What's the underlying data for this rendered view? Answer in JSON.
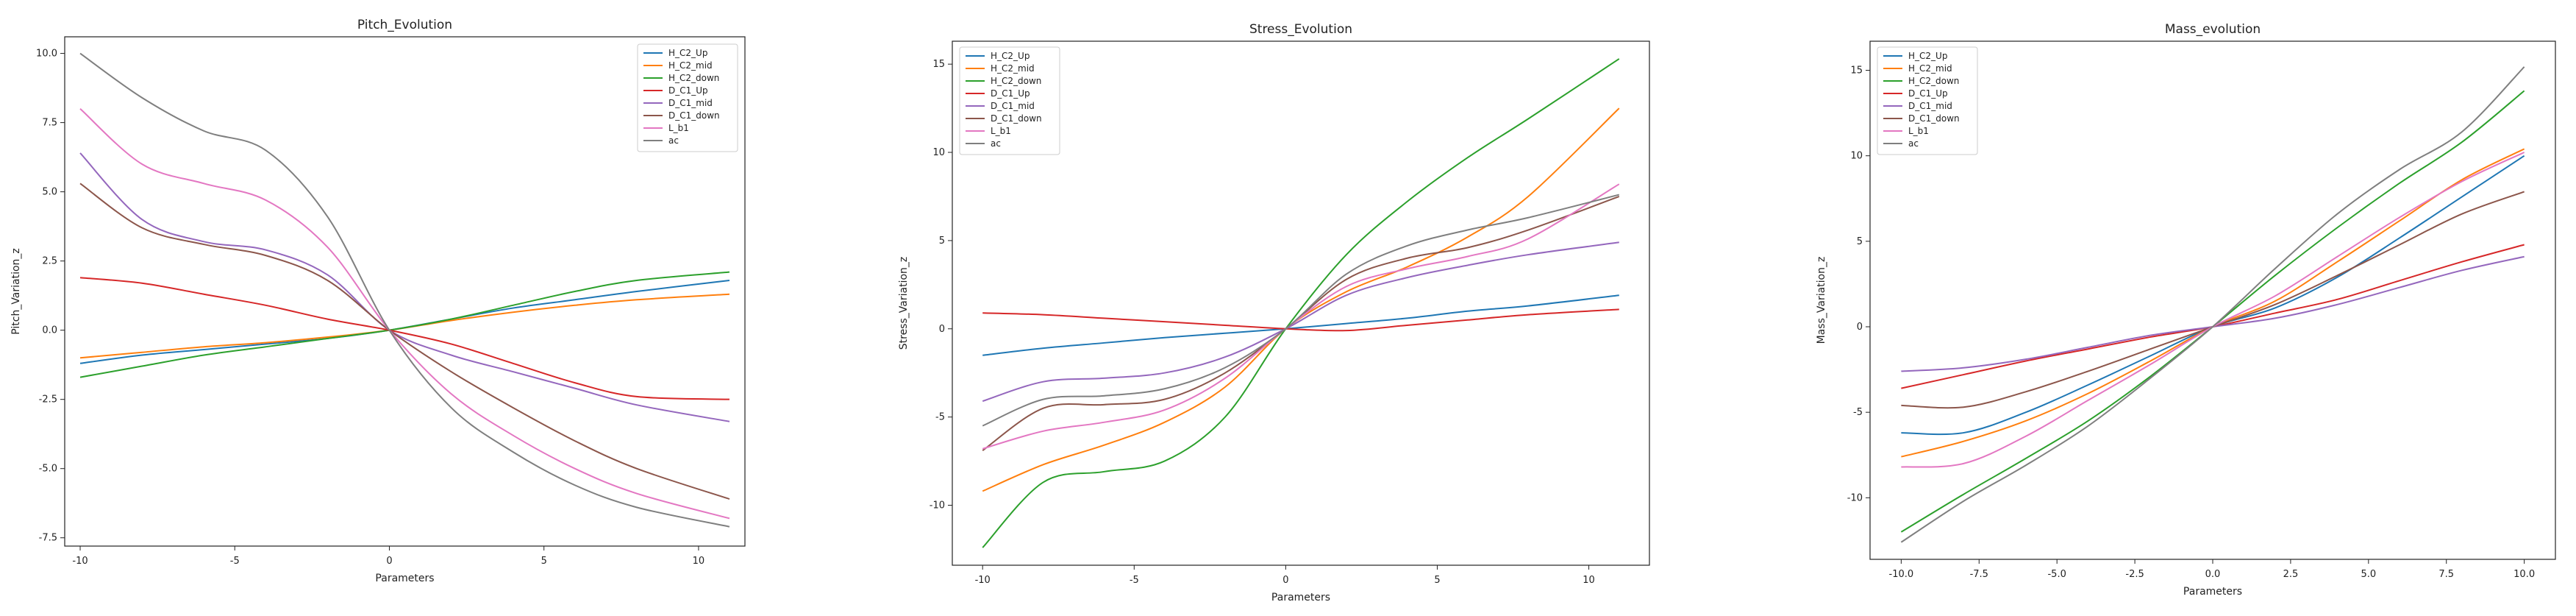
{
  "colors": {
    "palette": [
      "#1f77b4",
      "#ff7f0e",
      "#2ca02c",
      "#d62728",
      "#9467bd",
      "#8c564b",
      "#e377c2",
      "#7f7f7f"
    ]
  },
  "chart_data": [
    {
      "type": "line",
      "title": "Pitch_Evolution",
      "xlabel": "Parameters",
      "ylabel": "Pitch_Variation_z",
      "xlim": [
        -10.5,
        11.5
      ],
      "ylim": [
        -7.8,
        10.6
      ],
      "xticks": [
        -10,
        -5,
        0,
        5,
        10
      ],
      "xtick_labels": [
        "-10",
        "-5",
        "0",
        "5",
        "10"
      ],
      "yticks": [
        -7.5,
        -5.0,
        -2.5,
        0.0,
        2.5,
        5.0,
        7.5,
        10.0
      ],
      "ytick_labels": [
        "-7.5",
        "-5.0",
        "-2.5",
        "0.0",
        "2.5",
        "5.0",
        "7.5",
        "10.0"
      ],
      "legend": "upper right",
      "x": [
        -10,
        -8,
        -6,
        -4,
        -2,
        0,
        2,
        4,
        6,
        8,
        11
      ],
      "series": [
        {
          "name": "H_C2_Up",
          "values": [
            -1.2,
            -0.9,
            -0.7,
            -0.5,
            -0.3,
            0.0,
            0.4,
            0.8,
            1.1,
            1.4,
            1.8
          ]
        },
        {
          "name": "H_C2_mid",
          "values": [
            -1.0,
            -0.8,
            -0.6,
            -0.45,
            -0.25,
            0.0,
            0.35,
            0.65,
            0.9,
            1.1,
            1.3
          ]
        },
        {
          "name": "H_C2_down",
          "values": [
            -1.7,
            -1.3,
            -0.9,
            -0.6,
            -0.3,
            0.0,
            0.4,
            0.9,
            1.4,
            1.8,
            2.1
          ]
        },
        {
          "name": "D_C1_Up",
          "values": [
            1.9,
            1.7,
            1.3,
            0.9,
            0.4,
            0.0,
            -0.5,
            -1.2,
            -1.9,
            -2.4,
            -2.5
          ]
        },
        {
          "name": "D_C1_mid",
          "values": [
            6.4,
            4.0,
            3.2,
            2.9,
            2.0,
            0.0,
            -0.9,
            -1.5,
            -2.1,
            -2.7,
            -3.3
          ]
        },
        {
          "name": "D_C1_down",
          "values": [
            5.3,
            3.7,
            3.1,
            2.7,
            1.8,
            0.0,
            -1.5,
            -2.8,
            -4.0,
            -5.0,
            -6.1
          ]
        },
        {
          "name": "L_b1",
          "values": [
            8.0,
            6.0,
            5.3,
            4.7,
            3.0,
            0.0,
            -2.3,
            -3.8,
            -5.0,
            -5.9,
            -6.8
          ]
        },
        {
          "name": "ac",
          "values": [
            10.0,
            8.4,
            7.2,
            6.5,
            4.1,
            0.0,
            -2.8,
            -4.4,
            -5.6,
            -6.4,
            -7.1
          ]
        }
      ]
    },
    {
      "type": "line",
      "title": "Stress_Evolution",
      "xlabel": "Parameters",
      "ylabel": "Stress_Variation_z",
      "xlim": [
        -11.0,
        12.0
      ],
      "ylim": [
        -13.4,
        16.3
      ],
      "xticks": [
        -10,
        -5,
        0,
        5,
        10
      ],
      "xtick_labels": [
        "-10",
        "-5",
        "0",
        "5",
        "10"
      ],
      "yticks": [
        -10,
        -5,
        0,
        5,
        10,
        15
      ],
      "ytick_labels": [
        "-10",
        "-5",
        "0",
        "5",
        "10",
        "15"
      ],
      "legend": "upper left",
      "x": [
        -10,
        -8,
        -6,
        -4,
        -2,
        0,
        2,
        4,
        6,
        8,
        11
      ],
      "series": [
        {
          "name": "H_C2_Up",
          "values": [
            -1.5,
            -1.1,
            -0.8,
            -0.5,
            -0.25,
            0.0,
            0.3,
            0.6,
            1.0,
            1.3,
            1.9
          ]
        },
        {
          "name": "H_C2_mid",
          "values": [
            -9.2,
            -7.7,
            -6.6,
            -5.3,
            -3.3,
            0.0,
            2.1,
            3.5,
            5.2,
            7.5,
            12.5
          ]
        },
        {
          "name": "H_C2_down",
          "values": [
            -12.4,
            -8.7,
            -8.1,
            -7.5,
            -5.0,
            0.0,
            4.2,
            7.2,
            9.7,
            11.9,
            15.3
          ]
        },
        {
          "name": "D_C1_Up",
          "values": [
            0.9,
            0.8,
            0.6,
            0.4,
            0.2,
            0.0,
            -0.1,
            0.2,
            0.5,
            0.8,
            1.1
          ]
        },
        {
          "name": "D_C1_mid",
          "values": [
            -4.1,
            -3.0,
            -2.8,
            -2.5,
            -1.6,
            0.0,
            1.9,
            2.9,
            3.6,
            4.2,
            4.9
          ]
        },
        {
          "name": "D_C1_down",
          "values": [
            -6.9,
            -4.5,
            -4.3,
            -4.0,
            -2.5,
            0.0,
            2.8,
            4.0,
            4.6,
            5.6,
            7.5
          ]
        },
        {
          "name": "L_b1",
          "values": [
            -6.8,
            -5.8,
            -5.3,
            -4.6,
            -2.8,
            0.0,
            2.4,
            3.4,
            4.1,
            5.1,
            8.2
          ]
        },
        {
          "name": "ac",
          "values": [
            -5.5,
            -4.0,
            -3.8,
            -3.4,
            -2.2,
            0.0,
            3.1,
            4.7,
            5.6,
            6.3,
            7.6
          ]
        }
      ]
    },
    {
      "type": "line",
      "title": "Mass_evolution",
      "xlabel": "Parameters",
      "ylabel": "Mass_Variation_z",
      "xlim": [
        -11.0,
        11.0
      ],
      "ylim": [
        -13.6,
        16.7
      ],
      "xticks": [
        -10,
        -7.5,
        -5,
        -2.5,
        0,
        2.5,
        5,
        7.5,
        10
      ],
      "xtick_labels": [
        "-10.0",
        "-7.5",
        "-5.0",
        "-2.5",
        "0.0",
        "2.5",
        "5.0",
        "7.5",
        "10.0"
      ],
      "yticks": [
        -10,
        -5,
        0,
        5,
        10,
        15
      ],
      "ytick_labels": [
        "-10",
        "-5",
        "0",
        "5",
        "10",
        "15"
      ],
      "legend": "upper left",
      "x": [
        -10,
        -8,
        -6,
        -4,
        -2,
        0,
        2,
        4,
        6,
        8,
        10
      ],
      "series": [
        {
          "name": "H_C2_Up",
          "values": [
            -6.2,
            -6.2,
            -5.0,
            -3.4,
            -1.7,
            0.0,
            1.1,
            2.9,
            5.2,
            7.6,
            10.0
          ]
        },
        {
          "name": "H_C2_mid",
          "values": [
            -7.6,
            -6.7,
            -5.5,
            -3.9,
            -2.0,
            0.0,
            1.5,
            3.8,
            6.2,
            8.6,
            10.4
          ]
        },
        {
          "name": "H_C2_down",
          "values": [
            -12.0,
            -9.8,
            -7.7,
            -5.5,
            -2.9,
            0.0,
            3.0,
            5.8,
            8.4,
            10.8,
            13.8
          ]
        },
        {
          "name": "D_C1_Up",
          "values": [
            -3.6,
            -2.8,
            -2.0,
            -1.3,
            -0.6,
            0.0,
            0.8,
            1.6,
            2.7,
            3.8,
            4.8
          ]
        },
        {
          "name": "D_C1_mid",
          "values": [
            -2.6,
            -2.4,
            -1.9,
            -1.2,
            -0.5,
            0.0,
            0.5,
            1.3,
            2.3,
            3.3,
            4.1
          ]
        },
        {
          "name": "D_C1_down",
          "values": [
            -4.6,
            -4.7,
            -3.8,
            -2.6,
            -1.3,
            0.0,
            1.3,
            3.0,
            4.8,
            6.6,
            7.9
          ]
        },
        {
          "name": "L_b1",
          "values": [
            -8.2,
            -8.0,
            -6.4,
            -4.3,
            -2.2,
            0.0,
            1.8,
            4.1,
            6.4,
            8.5,
            10.2
          ]
        },
        {
          "name": "ac",
          "values": [
            -12.6,
            -10.2,
            -8.1,
            -5.8,
            -3.0,
            0.0,
            3.4,
            6.6,
            9.2,
            11.4,
            15.2
          ]
        }
      ]
    }
  ]
}
